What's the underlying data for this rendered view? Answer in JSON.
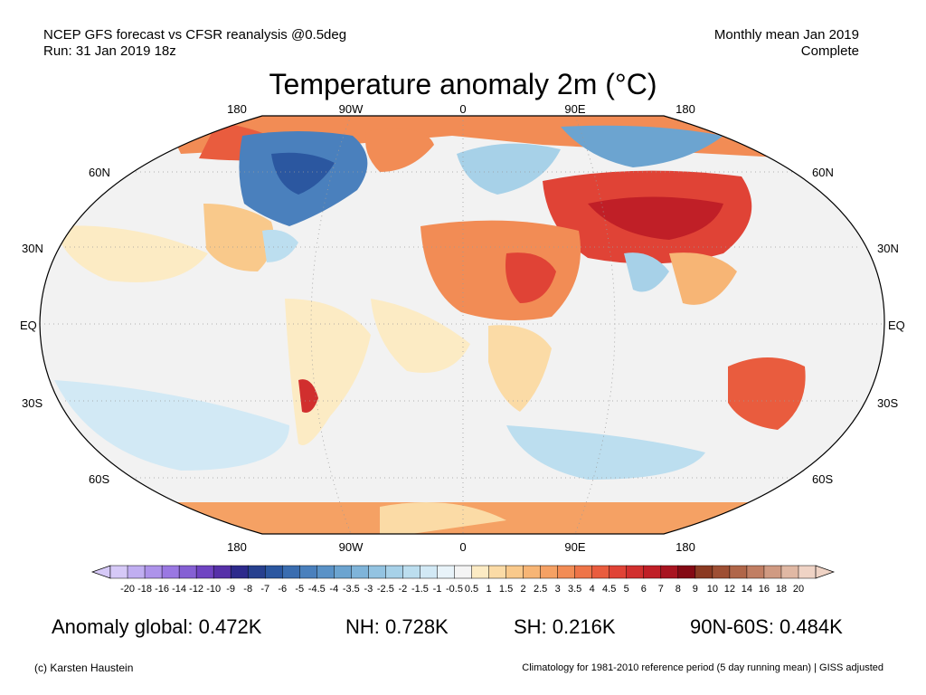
{
  "header": {
    "left_line1": "NCEP GFS forecast vs CFSR reanalysis @0.5deg",
    "left_line2": "Run: 31 Jan 2019 18z",
    "right_line1": "Monthly mean Jan 2019",
    "right_line2": "Complete"
  },
  "title": "Temperature anomaly 2m (°C)",
  "map": {
    "lon_labels": [
      "180",
      "90W",
      "0",
      "90E",
      "180"
    ],
    "lat_labels_left": [
      "60N",
      "30N",
      "EQ",
      "30S",
      "60S"
    ],
    "lat_labels_right": [
      "60N",
      "30N",
      "EQ",
      "30S",
      "60S"
    ],
    "ocean_color": "#f2f2f2",
    "projection": "Robinson"
  },
  "colorbar": {
    "labels": [
      "-20",
      "-18",
      "-16",
      "-14",
      "-12",
      "-10",
      "-9",
      "-8",
      "-7",
      "-6",
      "-5",
      "-4.5",
      "-4",
      "-3.5",
      "-3",
      "-2.5",
      "-2",
      "-1.5",
      "-1",
      "-0.5",
      "0.5",
      "1",
      "1.5",
      "2",
      "2.5",
      "3",
      "3.5",
      "4",
      "4.5",
      "5",
      "6",
      "7",
      "8",
      "9",
      "10",
      "12",
      "14",
      "16",
      "18",
      "20"
    ],
    "colors": [
      "#d6c9f7",
      "#c0aef1",
      "#ad93ea",
      "#9a78e2",
      "#8560d4",
      "#6f44c2",
      "#5630a8",
      "#2d2a8c",
      "#27408f",
      "#2b57a0",
      "#3a6db0",
      "#4a80bd",
      "#5a92c7",
      "#6ca4d0",
      "#7fb4d9",
      "#93c3e1",
      "#a7d1e8",
      "#bcdeef",
      "#d2e9f5",
      "#e8f3f9",
      "#f4f4f4",
      "#fcebc4",
      "#fbdba6",
      "#f9c98b",
      "#f7b575",
      "#f5a164",
      "#f28c55",
      "#ee7448",
      "#e95c3e",
      "#e04336",
      "#d12f2e",
      "#c01f27",
      "#a81420",
      "#840a14",
      "#8b3a22",
      "#9e4f34",
      "#b06649",
      "#c17e63",
      "#d09a82",
      "#e0b8a4",
      "#efd3c5"
    ]
  },
  "stats": {
    "global": "Anomaly global: 0.472K",
    "nh": "NH: 0.728K",
    "sh": "SH: 0.216K",
    "arctic": "90N-60S: 0.484K"
  },
  "footer": {
    "credit": "(c) Karsten Haustein",
    "note": "Climatology for 1981-2010 reference period (5 day running mean) | GISS adjusted"
  }
}
